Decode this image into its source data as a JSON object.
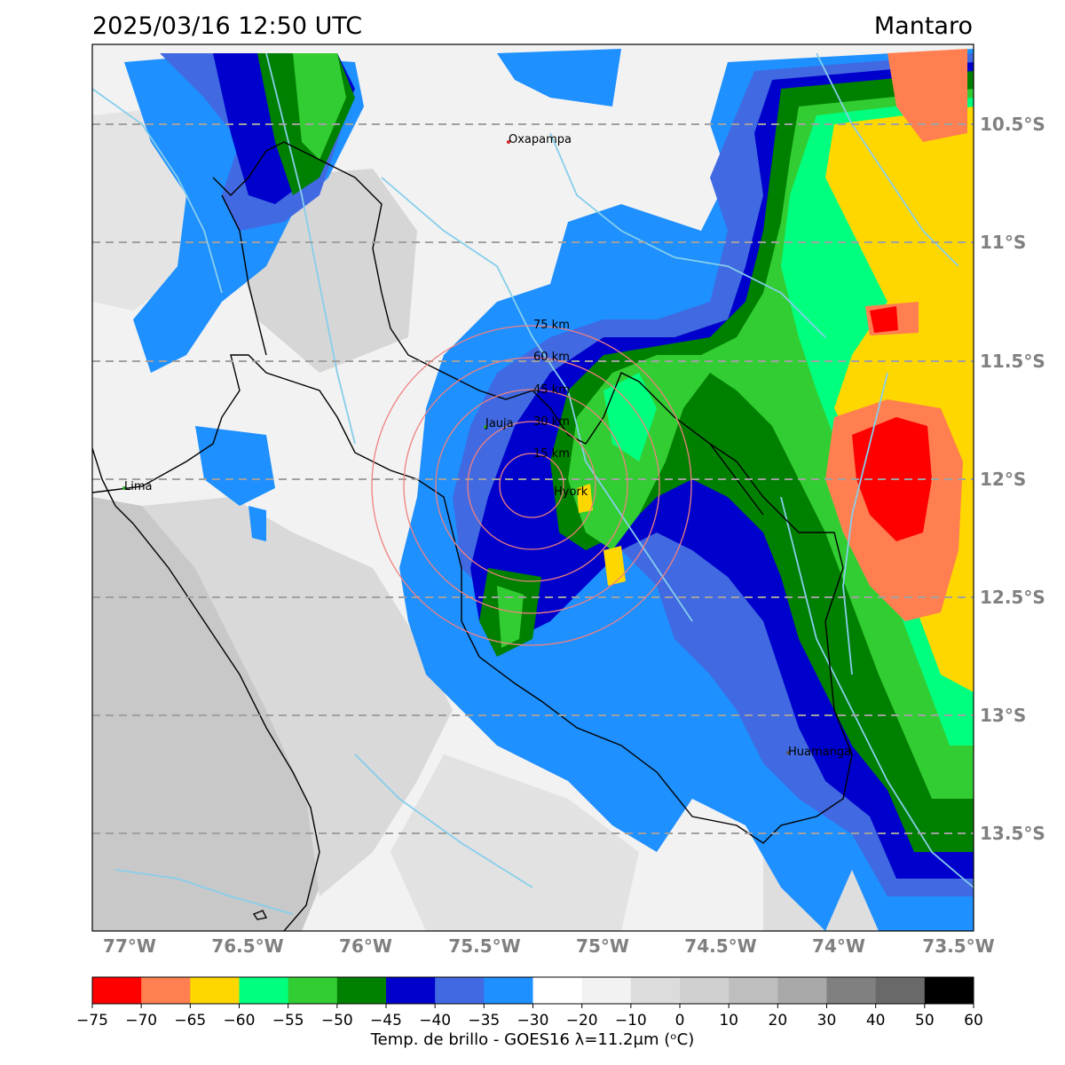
{
  "header": {
    "datetime": "2025/03/16 12:50 UTC",
    "region": "Mantaro"
  },
  "map": {
    "lat_labels": [
      "10.5°S",
      "11°S",
      "11.5°S",
      "12°S",
      "12.5°S",
      "13°S",
      "13.5°S"
    ],
    "lon_labels": [
      "77°W",
      "76.5°W",
      "76°W",
      "75.5°W",
      "75°W",
      "74.5°W",
      "74°W",
      "73.5°W"
    ],
    "cities": [
      {
        "name": "Oxapampa",
        "marker_color": "#d62728"
      },
      {
        "name": "Jauja",
        "marker_color": "#2ca02c"
      },
      {
        "name": "Lima",
        "marker_color": "#2ca02c"
      },
      {
        "name": "Huamanga",
        "marker_color": "#555555"
      }
    ],
    "radar_site": "Hyork",
    "range_rings": [
      "15 km",
      "30 km",
      "45 km",
      "60 km",
      "75 km"
    ],
    "colors": {
      "ring": "#f08080",
      "graticule": "#a0a0a0",
      "river": "#87ceeb",
      "border": "#000000"
    }
  },
  "colorbar": {
    "title": "Temp. de brillo - GOES16 λ=11.2μm (ᵒC)",
    "ticks": [
      "−75",
      "−70",
      "−65",
      "−60",
      "−55",
      "−50",
      "−45",
      "−40",
      "−35",
      "−30",
      "−20",
      "−10",
      "0",
      "10",
      "20",
      "30",
      "40",
      "50",
      "60"
    ],
    "colors": [
      "#ff0000",
      "#ff7f50",
      "#ffd700",
      "#00ff7f",
      "#32cd32",
      "#008000",
      "#0000cd",
      "#4169e1",
      "#1e90ff",
      "#ffffff",
      "#f2f2f2",
      "#dcdcdc",
      "#d0d0d0",
      "#bebebe",
      "#a9a9a9",
      "#808080",
      "#696969",
      "#000000"
    ]
  }
}
